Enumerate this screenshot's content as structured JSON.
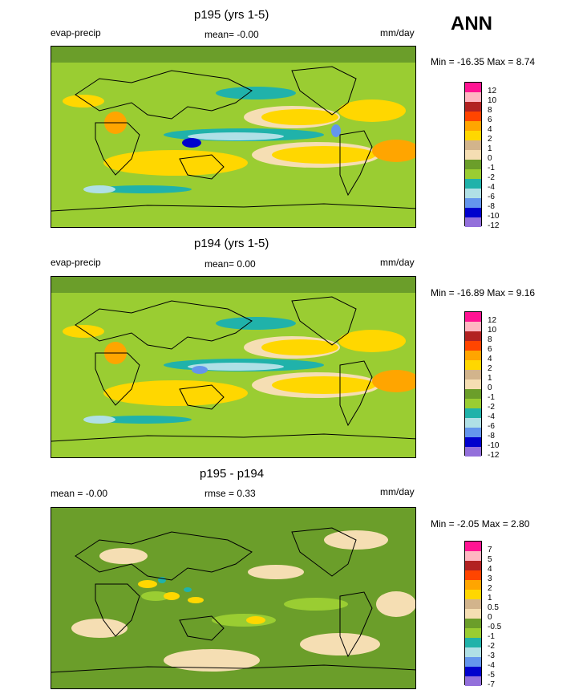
{
  "season": "ANN",
  "panels": [
    {
      "title": "p195 (yrs 1-5)",
      "left_label": "evap-precip",
      "center_label": "mean=  -0.00",
      "units": "mm/day",
      "minmax": "Min = -16.35 Max =   8.74",
      "legend": {
        "labels": [
          "12",
          "10",
          "8",
          "6",
          "4",
          "2",
          "1",
          "0",
          "-1",
          "-2",
          "-4",
          "-6",
          "-8",
          "-10",
          "-12"
        ],
        "colors": [
          "#ff1493",
          "#ffb6c1",
          "#b22222",
          "#ff4500",
          "#ffa500",
          "#ffd700",
          "#d2b48c",
          "#f5deb3",
          "#6b9e2a",
          "#9acd32",
          "#20b2aa",
          "#b0e0e6",
          "#6495ed",
          "#0000cd",
          "#9370db"
        ]
      }
    },
    {
      "title": "p194 (yrs 1-5)",
      "left_label": "evap-precip",
      "center_label": "mean=  0.00",
      "units": "mm/day",
      "minmax": "Min = -16.89 Max =   9.16",
      "legend": {
        "labels": [
          "12",
          "10",
          "8",
          "6",
          "4",
          "2",
          "1",
          "0",
          "-1",
          "-2",
          "-4",
          "-6",
          "-8",
          "-10",
          "-12"
        ],
        "colors": [
          "#ff1493",
          "#ffb6c1",
          "#b22222",
          "#ff4500",
          "#ffa500",
          "#ffd700",
          "#d2b48c",
          "#f5deb3",
          "#6b9e2a",
          "#9acd32",
          "#20b2aa",
          "#b0e0e6",
          "#6495ed",
          "#0000cd",
          "#9370db"
        ]
      }
    },
    {
      "title": "p195 - p194",
      "left_label": "mean =  -0.00",
      "center_label": "rmse =   0.33",
      "units": "mm/day",
      "minmax": "Min =  -2.05 Max =   2.80",
      "legend": {
        "labels": [
          "7",
          "5",
          "4",
          "3",
          "2",
          "1",
          "0.5",
          "0",
          "-0.5",
          "-1",
          "-2",
          "-3",
          "-4",
          "-5",
          "-7"
        ],
        "colors": [
          "#ff1493",
          "#ffb6c1",
          "#b22222",
          "#ff4500",
          "#ffa500",
          "#ffd700",
          "#d2b48c",
          "#f5deb3",
          "#6b9e2a",
          "#9acd32",
          "#20b2aa",
          "#b0e0e6",
          "#6495ed",
          "#0000cd",
          "#9370db"
        ]
      }
    }
  ]
}
